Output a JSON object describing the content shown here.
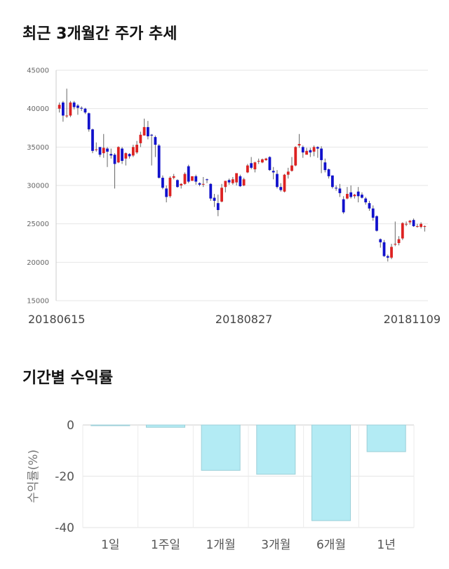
{
  "titles": {
    "price_trend": "최근 3개월간 주가 추세",
    "returns": "기간별 수익률"
  },
  "colors": {
    "up": "#dd2222",
    "down": "#1111cc",
    "bar": "#b3ebf4",
    "bar_edge": "#9ccfd8",
    "grid": "#e6e6e6"
  },
  "chart_data": [
    {
      "type": "candlestick",
      "title": "최근 3개월간 주가 추세",
      "ylim": [
        15000,
        45000
      ],
      "yticks": [
        "45000",
        "40000",
        "35000",
        "30000",
        "25000",
        "20000",
        "15000"
      ],
      "xtick_labels": [
        "20180615",
        "20180827",
        "20181109"
      ],
      "grid": true,
      "candles": [
        [
          40000,
          40500,
          39500,
          40800
        ],
        [
          40800,
          39100,
          38300,
          41000
        ],
        [
          39000,
          39100,
          38800,
          42600
        ],
        [
          39100,
          40800,
          38900,
          41000
        ],
        [
          40800,
          40200,
          39900,
          41000
        ],
        [
          40400,
          40100,
          39200,
          40600
        ],
        [
          40100,
          40000,
          39700,
          40300
        ],
        [
          40000,
          39500,
          39300,
          40100
        ],
        [
          39400,
          37300,
          37000,
          39500
        ],
        [
          37300,
          34500,
          34200,
          37400
        ],
        [
          34700,
          34700,
          34400,
          35600
        ],
        [
          35000,
          34000,
          33700,
          35000
        ],
        [
          34200,
          34900,
          33600,
          36700
        ],
        [
          34800,
          34400,
          32400,
          35000
        ],
        [
          34100,
          33900,
          33500,
          34800
        ],
        [
          34000,
          32800,
          29600,
          34200
        ],
        [
          33000,
          35000,
          32900,
          35100
        ],
        [
          34800,
          33200,
          32800,
          35000
        ],
        [
          33500,
          34200,
          32600,
          34300
        ],
        [
          34100,
          33800,
          33500,
          34200
        ],
        [
          33900,
          35000,
          33700,
          35300
        ],
        [
          34300,
          35300,
          34100,
          35800
        ],
        [
          35500,
          36600,
          35000,
          37000
        ],
        [
          36500,
          37600,
          36500,
          38700
        ],
        [
          37600,
          36400,
          36000,
          38400
        ],
        [
          36600,
          36500,
          32600,
          36700
        ],
        [
          36300,
          35300,
          33700,
          36500
        ],
        [
          35200,
          31000,
          30900,
          35400
        ],
        [
          31000,
          29700,
          29500,
          31300
        ],
        [
          29600,
          28500,
          27800,
          30000
        ],
        [
          28600,
          31000,
          28400,
          31200
        ],
        [
          31000,
          31200,
          30800,
          31500
        ],
        [
          30700,
          29800,
          29700,
          30800
        ],
        [
          30000,
          30200,
          29600,
          30300
        ],
        [
          30200,
          31500,
          30100,
          31700
        ],
        [
          32500,
          30500,
          30300,
          32700
        ],
        [
          30600,
          31200,
          30600,
          31200
        ],
        [
          31200,
          30500,
          30100,
          31400
        ],
        [
          30300,
          30100,
          29900,
          30400
        ],
        [
          30200,
          30200,
          29800,
          31100
        ],
        [
          30800,
          30700,
          30300,
          30900
        ],
        [
          30200,
          28300,
          28000,
          30300
        ],
        [
          28400,
          28000,
          27200,
          28900
        ],
        [
          27700,
          26800,
          26000,
          28800
        ],
        [
          27900,
          29700,
          27800,
          30200
        ],
        [
          29800,
          30600,
          29100,
          30600
        ],
        [
          30700,
          30400,
          30100,
          30900
        ],
        [
          30300,
          30800,
          30100,
          31100
        ],
        [
          30400,
          31600,
          30000,
          31600
        ],
        [
          31200,
          29900,
          29800,
          31400
        ],
        [
          30000,
          30800,
          29900,
          31000
        ],
        [
          31700,
          32600,
          31600,
          32800
        ],
        [
          32900,
          32300,
          32100,
          33700
        ],
        [
          32100,
          33000,
          31700,
          33100
        ],
        [
          33200,
          33200,
          32800,
          33500
        ],
        [
          33000,
          33400,
          32900,
          33500
        ],
        [
          33300,
          33500,
          33200,
          33600
        ],
        [
          33700,
          32000,
          31900,
          33800
        ],
        [
          31900,
          31700,
          30800,
          32400
        ],
        [
          31500,
          29800,
          29600,
          32000
        ],
        [
          29800,
          29400,
          29200,
          30300
        ],
        [
          29200,
          31400,
          29100,
          31500
        ],
        [
          31400,
          31800,
          30900,
          32300
        ],
        [
          31900,
          32600,
          31800,
          33700
        ],
        [
          32600,
          35000,
          32500,
          35100
        ],
        [
          35200,
          35400,
          34900,
          36700
        ],
        [
          35000,
          34300,
          33600,
          35200
        ],
        [
          34000,
          34500,
          34100,
          34900
        ],
        [
          34600,
          34300,
          33700,
          34900
        ],
        [
          34400,
          35000,
          33800,
          35200
        ],
        [
          35000,
          34800,
          33600,
          35100
        ],
        [
          34800,
          33300,
          31600,
          35100
        ],
        [
          33000,
          32000,
          31700,
          33500
        ],
        [
          32100,
          31200,
          30900,
          32200
        ],
        [
          31300,
          29800,
          29600,
          31300
        ],
        [
          29700,
          29600,
          29300,
          30000
        ],
        [
          29600,
          29000,
          28500,
          30200
        ],
        [
          28200,
          26500,
          26300,
          28600
        ],
        [
          28300,
          28900,
          28200,
          29800
        ],
        [
          29100,
          28500,
          28300,
          30000
        ],
        [
          28600,
          28800,
          28300,
          28900
        ],
        [
          29200,
          28600,
          27800,
          29800
        ],
        [
          28800,
          28400,
          28300,
          29100
        ],
        [
          28300,
          27800,
          27500,
          28500
        ],
        [
          27700,
          27000,
          26700,
          28000
        ],
        [
          27000,
          25800,
          25400,
          27400
        ],
        [
          26000,
          24100,
          24000,
          26100
        ],
        [
          23000,
          22600,
          21900,
          23100
        ],
        [
          22600,
          20800,
          20700,
          22900
        ],
        [
          20800,
          20600,
          20100,
          21000
        ],
        [
          20600,
          22000,
          20400,
          22400
        ],
        [
          22300,
          22400,
          22100,
          25300
        ],
        [
          22500,
          23000,
          22200,
          23400
        ],
        [
          23100,
          25100,
          22900,
          25200
        ],
        [
          25000,
          25000,
          24700,
          25300
        ],
        [
          25200,
          25400,
          24900,
          25500
        ],
        [
          25500,
          24700,
          24600,
          25700
        ],
        [
          24700,
          24700,
          24500,
          25000
        ],
        [
          24600,
          25000,
          24400,
          25200
        ],
        [
          24700,
          24700,
          24000,
          24800
        ]
      ]
    },
    {
      "type": "bar",
      "title": "기간별 수익률",
      "ylabel": "수익률(%)",
      "categories": [
        "1일",
        "1주일",
        "1개월",
        "3개월",
        "6개월",
        "1년"
      ],
      "values": [
        0,
        -0.9,
        -17.7,
        -19.2,
        -37.3,
        -10.4
      ],
      "ylim": [
        -40,
        0
      ],
      "yticks": [
        "0",
        "-20",
        "-40"
      ],
      "grid": true
    }
  ]
}
